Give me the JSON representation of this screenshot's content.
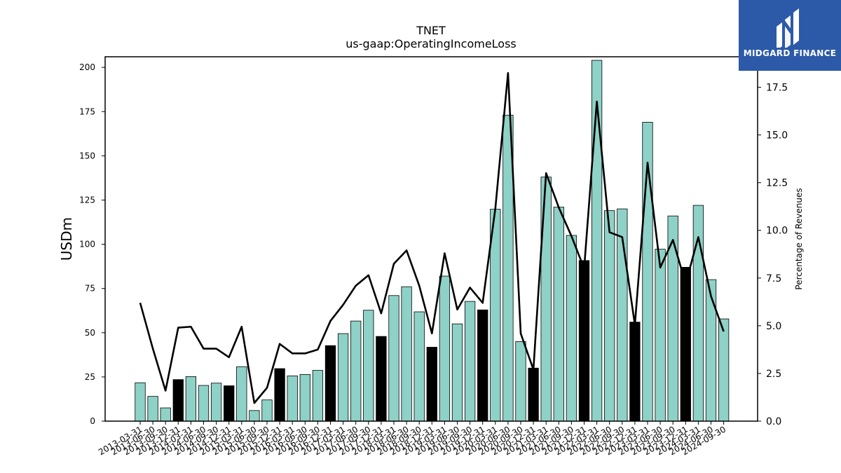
{
  "chart_data": {
    "type": "bar",
    "title": "TNET",
    "subtitle": "us-gaap:OperatingIncomeLoss",
    "ylabel": "USDm",
    "y2label": "Percentage of Revenues",
    "ylim": [
      0,
      206
    ],
    "y2lim": [
      0,
      19.1
    ],
    "yticks": [
      0,
      25,
      50,
      75,
      100,
      125,
      150,
      175,
      200
    ],
    "y2ticks": [
      "0.0",
      "2.5",
      "5.0",
      "7.5",
      "10.0",
      "12.5",
      "15.0",
      "17.5"
    ],
    "categories": [
      "2013-03-31",
      "2013-06-30",
      "2013-09-30",
      "2013-12-31",
      "2014-03-31",
      "2014-06-30",
      "2014-09-30",
      "2014-12-31",
      "2015-03-31",
      "2015-06-30",
      "2015-09-30",
      "2015-12-31",
      "2016-03-31",
      "2016-06-30",
      "2016-09-30",
      "2016-12-31",
      "2017-03-31",
      "2017-06-30",
      "2017-09-30",
      "2017-12-31",
      "2018-03-31",
      "2018-06-30",
      "2018-09-30",
      "2018-12-31",
      "2019-03-31",
      "2019-06-30",
      "2019-09-30",
      "2019-12-31",
      "2020-03-31",
      "2020-06-30",
      "2020-09-30",
      "2020-12-31",
      "2021-03-31",
      "2021-06-30",
      "2021-09-30",
      "2021-12-31",
      "2022-03-31",
      "2022-06-30",
      "2022-09-30",
      "2022-12-31",
      "2023-03-31",
      "2023-06-30",
      "2023-09-30",
      "2023-12-31",
      "2024-03-31",
      "2024-06-30",
      "2024-09-30"
    ],
    "series": [
      {
        "type": "bar",
        "axis": "left",
        "values": [
          21.7,
          14,
          7.5,
          23.5,
          25.2,
          20.2,
          21.5,
          20,
          30.8,
          6,
          12,
          29.7,
          25.6,
          26.4,
          28.7,
          42.7,
          49.5,
          56.6,
          62.7,
          47.9,
          71,
          76,
          61.8,
          41.8,
          82,
          55,
          67.7,
          62.9,
          119.8,
          173,
          45,
          30,
          138,
          121,
          105,
          90.8,
          204,
          119,
          120,
          56,
          169,
          97.2,
          116,
          87,
          122,
          80,
          57.8
        ],
        "highlight": [
          false,
          false,
          false,
          true,
          false,
          false,
          false,
          true,
          false,
          false,
          false,
          true,
          false,
          false,
          false,
          true,
          false,
          false,
          false,
          true,
          false,
          false,
          false,
          true,
          false,
          false,
          false,
          true,
          false,
          false,
          false,
          true,
          false,
          false,
          false,
          true,
          false,
          false,
          false,
          true,
          false,
          false,
          false,
          true,
          false,
          false,
          false
        ]
      },
      {
        "type": "line",
        "axis": "right",
        "values": [
          6.2,
          3.8,
          1.6,
          4.9,
          4.95,
          3.8,
          3.8,
          3.35,
          4.95,
          0.95,
          1.75,
          4.05,
          3.55,
          3.55,
          3.75,
          5.25,
          6.1,
          7.1,
          7.65,
          5.65,
          8.25,
          8.95,
          7.1,
          4.6,
          8.8,
          5.85,
          7.0,
          6.2,
          11.15,
          18.25,
          4.6,
          2.7,
          13.0,
          11.2,
          9.7,
          8.0,
          16.75,
          9.9,
          9.65,
          5.05,
          13.55,
          8.05,
          9.5,
          7.2,
          9.65,
          6.55,
          4.7
        ]
      }
    ],
    "colors": {
      "bar": "#8ed1c6",
      "highlight_bar": "#000000",
      "line": "#000000",
      "bar_edge": "#000000"
    }
  },
  "logo": {
    "text": "MIDGARD FINANCE",
    "color": "#2c5aa8"
  }
}
